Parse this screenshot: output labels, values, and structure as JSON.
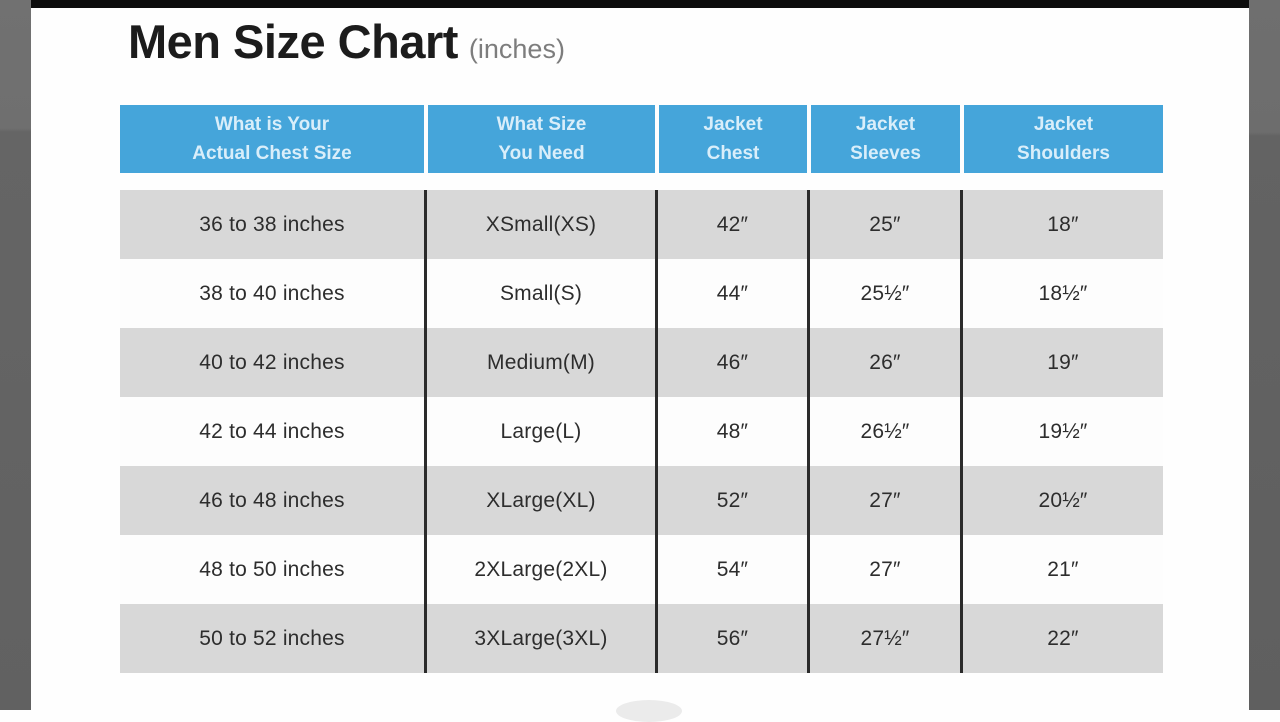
{
  "page": {
    "title": "Men Size Chart",
    "title_note": "(inches)"
  },
  "colors": {
    "header_blue": "#45a5da",
    "header_text": "#d9eefa",
    "row_gray": "#d8d8d8",
    "row_white": "#fdfdfd",
    "divider_black": "#2b2b2b",
    "side_bar_gray": "#696969",
    "title_black": "#1c1c1c",
    "note_gray": "#7d7d7d"
  },
  "chart_data": {
    "type": "table",
    "title": "Men Size Chart",
    "units": "inches",
    "columns": [
      {
        "line1": "What is Your",
        "line2": "Actual Chest Size",
        "label": "What is Your Actual Chest Size"
      },
      {
        "line1": "What Size",
        "line2": "You Need",
        "label": "What Size You Need"
      },
      {
        "line1": "Jacket",
        "line2": "Chest",
        "label": "Jacket Chest"
      },
      {
        "line1": "Jacket",
        "line2": "Sleeves",
        "label": "Jacket Sleeves"
      },
      {
        "line1": "Jacket",
        "line2": "Shoulders",
        "label": "Jacket Shoulders"
      }
    ],
    "rows": [
      {
        "cells": [
          "36 to 38 inches",
          "XSmall(XS)",
          "42″",
          "25″",
          "18″"
        ]
      },
      {
        "cells": [
          "38 to 40 inches",
          "Small(S)",
          "44″",
          "25½″",
          "18½″"
        ]
      },
      {
        "cells": [
          "40 to 42 inches",
          "Medium(M)",
          "46″",
          "26″",
          "19″"
        ]
      },
      {
        "cells": [
          "42 to 44 inches",
          "Large(L)",
          "48″",
          "26½″",
          "19½″"
        ]
      },
      {
        "cells": [
          "46 to 48 inches",
          "XLarge(XL)",
          "52″",
          "27″",
          "20½″"
        ]
      },
      {
        "cells": [
          "48 to 50 inches",
          "2XLarge(2XL)",
          "54″",
          "27″",
          "21″"
        ]
      },
      {
        "cells": [
          "50 to 52 inches",
          "3XLarge(3XL)",
          "56″",
          "27½″",
          "22″"
        ]
      }
    ]
  }
}
